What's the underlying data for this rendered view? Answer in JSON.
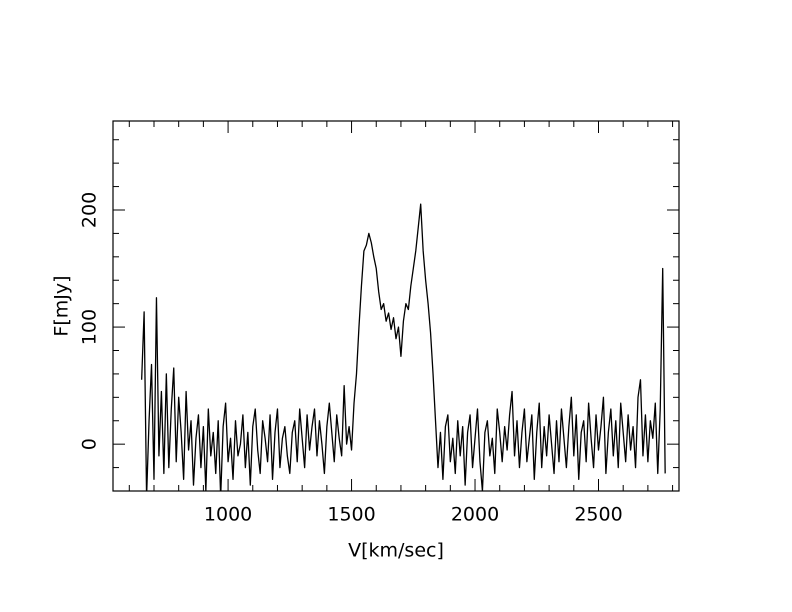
{
  "chart_data": {
    "type": "line",
    "xlabel": "V[km/sec]",
    "ylabel": "F[mJy]",
    "xlim": [
      534,
      2826
    ],
    "ylim": [
      -40,
      276
    ],
    "xticks": [
      1000,
      1500,
      2000,
      2500
    ],
    "yticks": [
      0,
      100,
      200
    ],
    "xminorticks": [
      600,
      700,
      800,
      900,
      1100,
      1200,
      1300,
      1400,
      1600,
      1700,
      1800,
      1900,
      2100,
      2200,
      2300,
      2400,
      2600,
      2700,
      2800
    ],
    "yminorticks": [
      -20,
      20,
      40,
      60,
      80,
      120,
      140,
      160,
      180,
      220,
      240,
      260
    ],
    "color": "#000000",
    "x": [
      650,
      660,
      670,
      680,
      690,
      700,
      710,
      720,
      730,
      740,
      750,
      760,
      770,
      780,
      790,
      800,
      810,
      820,
      830,
      840,
      850,
      860,
      870,
      880,
      890,
      900,
      910,
      920,
      930,
      940,
      950,
      960,
      970,
      980,
      990,
      1000,
      1010,
      1020,
      1030,
      1040,
      1050,
      1060,
      1070,
      1080,
      1090,
      1100,
      1110,
      1120,
      1130,
      1140,
      1150,
      1160,
      1170,
      1180,
      1190,
      1200,
      1210,
      1220,
      1230,
      1240,
      1250,
      1260,
      1270,
      1280,
      1290,
      1300,
      1310,
      1320,
      1330,
      1340,
      1350,
      1360,
      1370,
      1380,
      1390,
      1400,
      1410,
      1420,
      1430,
      1440,
      1450,
      1460,
      1470,
      1480,
      1490,
      1500,
      1510,
      1520,
      1530,
      1540,
      1550,
      1560,
      1570,
      1580,
      1590,
      1600,
      1610,
      1620,
      1630,
      1640,
      1650,
      1660,
      1670,
      1680,
      1690,
      1700,
      1710,
      1720,
      1730,
      1740,
      1750,
      1760,
      1770,
      1780,
      1790,
      1800,
      1810,
      1820,
      1830,
      1840,
      1850,
      1860,
      1870,
      1880,
      1890,
      1900,
      1910,
      1920,
      1930,
      1940,
      1950,
      1960,
      1970,
      1980,
      1990,
      2000,
      2010,
      2020,
      2030,
      2040,
      2050,
      2060,
      2070,
      2080,
      2090,
      2100,
      2110,
      2120,
      2130,
      2140,
      2150,
      2160,
      2170,
      2180,
      2190,
      2200,
      2210,
      2220,
      2230,
      2240,
      2250,
      2260,
      2270,
      2280,
      2290,
      2300,
      2310,
      2320,
      2330,
      2340,
      2350,
      2360,
      2370,
      2380,
      2390,
      2400,
      2410,
      2420,
      2430,
      2440,
      2450,
      2460,
      2470,
      2480,
      2490,
      2500,
      2510,
      2520,
      2530,
      2540,
      2550,
      2560,
      2570,
      2580,
      2590,
      2600,
      2610,
      2620,
      2630,
      2640,
      2650,
      2660,
      2670,
      2680,
      2690,
      2700,
      2710,
      2720,
      2730,
      2740,
      2750,
      2760,
      2770
    ],
    "values": [
      55,
      113,
      -45,
      20,
      68,
      -30,
      125,
      -10,
      45,
      -25,
      60,
      -20,
      30,
      65,
      -15,
      40,
      10,
      -30,
      45,
      -5,
      20,
      -35,
      5,
      25,
      -20,
      15,
      -40,
      30,
      -10,
      10,
      -25,
      20,
      -45,
      15,
      35,
      -15,
      5,
      -30,
      20,
      -10,
      0,
      25,
      -20,
      10,
      -35,
      15,
      30,
      -5,
      -25,
      20,
      5,
      -15,
      25,
      -30,
      10,
      30,
      -20,
      5,
      15,
      -10,
      -25,
      10,
      20,
      -15,
      30,
      5,
      -20,
      25,
      -5,
      15,
      30,
      -10,
      20,
      0,
      -25,
      15,
      35,
      10,
      -15,
      25,
      5,
      -10,
      50,
      0,
      15,
      -5,
      35,
      60,
      100,
      135,
      165,
      170,
      180,
      172,
      160,
      150,
      130,
      115,
      120,
      105,
      112,
      98,
      108,
      90,
      100,
      75,
      105,
      120,
      115,
      135,
      150,
      165,
      185,
      205,
      165,
      140,
      120,
      95,
      60,
      20,
      -20,
      10,
      -30,
      15,
      25,
      -15,
      5,
      -25,
      20,
      -10,
      15,
      -35,
      10,
      25,
      -20,
      5,
      30,
      -15,
      -40,
      10,
      20,
      -10,
      5,
      -25,
      30,
      10,
      -15,
      15,
      -5,
      25,
      45,
      -10,
      20,
      -20,
      10,
      30,
      -15,
      5,
      25,
      -30,
      10,
      35,
      -20,
      15,
      -10,
      25,
      0,
      -25,
      20,
      -15,
      30,
      5,
      -20,
      15,
      40,
      -10,
      25,
      -30,
      10,
      20,
      -15,
      35,
      5,
      -20,
      25,
      -5,
      15,
      40,
      -25,
      10,
      30,
      -10,
      20,
      -20,
      35,
      10,
      -15,
      25,
      -5,
      15,
      -20,
      40,
      55,
      -10,
      25,
      -15,
      20,
      5,
      35,
      -25,
      30,
      150,
      -25
    ]
  }
}
